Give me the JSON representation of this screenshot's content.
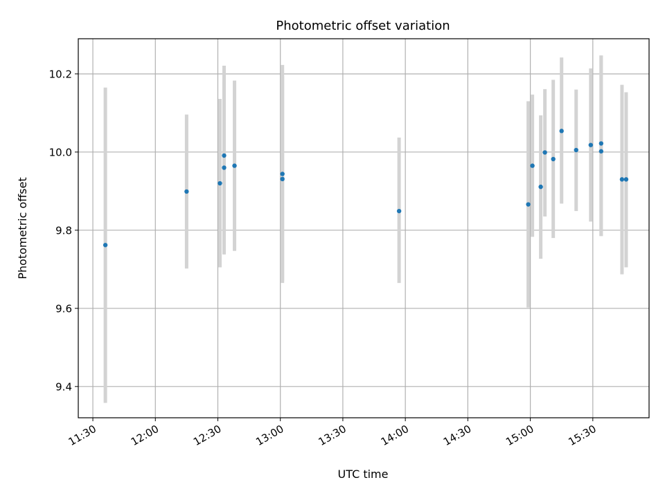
{
  "chart_data": {
    "type": "scatter",
    "title": "Photometric offset variation",
    "xlabel": "UTC time",
    "ylabel": "Photometric offset",
    "x_axis_type": "time",
    "xlim": [
      "11:23",
      "15:57"
    ],
    "ylim": [
      9.32,
      10.29
    ],
    "x_ticks": [
      "11:30",
      "12:00",
      "12:30",
      "13:00",
      "13:30",
      "14:00",
      "14:30",
      "15:00",
      "15:30"
    ],
    "y_ticks": [
      9.4,
      9.6,
      9.8,
      10.0,
      10.2
    ],
    "y_tick_labels": [
      "9.4",
      "9.6",
      "9.8",
      "10.0",
      "10.2"
    ],
    "grid": true,
    "point_color": "#1f77b4",
    "errorbar_color": "#d3d3d3",
    "points": [
      {
        "time": "11:36",
        "y": 9.762,
        "ylow": 9.358,
        "yhigh": 10.165
      },
      {
        "time": "12:15",
        "y": 9.899,
        "ylow": 9.702,
        "yhigh": 10.096
      },
      {
        "time": "12:31",
        "y": 9.92,
        "ylow": 9.705,
        "yhigh": 10.136
      },
      {
        "time": "12:33",
        "y": 9.991,
        "ylow": 9.763,
        "yhigh": 10.221
      },
      {
        "time": "12:33",
        "y": 9.96,
        "ylow": 9.738,
        "yhigh": 10.181
      },
      {
        "time": "12:38",
        "y": 9.965,
        "ylow": 9.747,
        "yhigh": 10.183
      },
      {
        "time": "13:01",
        "y": 9.944,
        "ylow": 9.665,
        "yhigh": 10.223
      },
      {
        "time": "13:01",
        "y": 9.931,
        "ylow": 9.67,
        "yhigh": 10.194
      },
      {
        "time": "13:57",
        "y": 9.849,
        "ylow": 9.665,
        "yhigh": 10.037
      },
      {
        "time": "14:59",
        "y": 9.866,
        "ylow": 9.602,
        "yhigh": 10.13
      },
      {
        "time": "15:01",
        "y": 9.965,
        "ylow": 9.783,
        "yhigh": 10.147
      },
      {
        "time": "15:05",
        "y": 9.911,
        "ylow": 9.727,
        "yhigh": 10.094
      },
      {
        "time": "15:07",
        "y": 9.999,
        "ylow": 9.835,
        "yhigh": 10.161
      },
      {
        "time": "15:11",
        "y": 9.982,
        "ylow": 9.78,
        "yhigh": 10.185
      },
      {
        "time": "15:15",
        "y": 10.054,
        "ylow": 9.868,
        "yhigh": 10.242
      },
      {
        "time": "15:22",
        "y": 10.005,
        "ylow": 9.849,
        "yhigh": 10.16
      },
      {
        "time": "15:29",
        "y": 10.018,
        "ylow": 9.822,
        "yhigh": 10.214
      },
      {
        "time": "15:34",
        "y": 10.022,
        "ylow": 9.785,
        "yhigh": 10.247
      },
      {
        "time": "15:34",
        "y": 10.002,
        "ylow": 9.785,
        "yhigh": 10.247
      },
      {
        "time": "15:44",
        "y": 9.93,
        "ylow": 9.687,
        "yhigh": 10.172
      },
      {
        "time": "15:46",
        "y": 9.93,
        "ylow": 9.705,
        "yhigh": 10.153
      }
    ]
  }
}
